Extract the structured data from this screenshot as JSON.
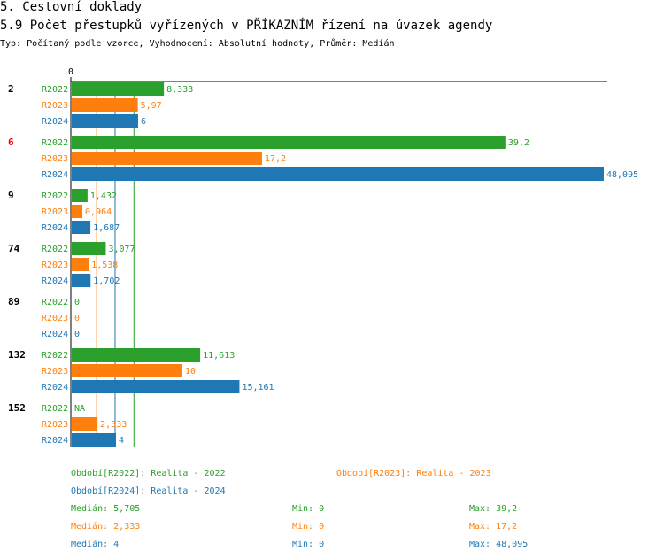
{
  "header": {
    "section": "5. Cestovní doklady",
    "title": "5.9 Počet přestupků vyřízených v PŘÍKAZNÍM řízení na úvazek agendy",
    "subtitle": "Typ: Počítaný podle vzorce, Vyhodnocení: Absolutní hodnoty, Průměr: Medián"
  },
  "chart_data": {
    "type": "bar",
    "orientation": "horizontal",
    "axis_zero_label": "0",
    "xlim": [
      0,
      48.095
    ],
    "groups": [
      {
        "label": "2",
        "highlight": false,
        "values": [
          8.333,
          5.97,
          6
        ],
        "labels": [
          "8,333",
          "5,97",
          "6"
        ]
      },
      {
        "label": "6",
        "highlight": true,
        "values": [
          39.2,
          17.2,
          48.095
        ],
        "labels": [
          "39,2",
          "17,2",
          "48,095"
        ]
      },
      {
        "label": "9",
        "highlight": false,
        "values": [
          1.432,
          0.964,
          1.687
        ],
        "labels": [
          "1,432",
          "0,964",
          "1,687"
        ]
      },
      {
        "label": "74",
        "highlight": false,
        "values": [
          3.077,
          1.538,
          1.702
        ],
        "labels": [
          "3,077",
          "1,538",
          "1,702"
        ]
      },
      {
        "label": "89",
        "highlight": false,
        "values": [
          0,
          0,
          0
        ],
        "labels": [
          "0",
          "0",
          "0"
        ]
      },
      {
        "label": "132",
        "highlight": false,
        "values": [
          11.613,
          10,
          15.161
        ],
        "labels": [
          "11,613",
          "10",
          "15,161"
        ]
      },
      {
        "label": "152",
        "highlight": false,
        "values": [
          null,
          2.333,
          4
        ],
        "labels": [
          "NA",
          "2,333",
          "4"
        ]
      }
    ],
    "series": [
      {
        "name": "R2022",
        "color": "#2ca02c",
        "median": 5.705
      },
      {
        "name": "R2023",
        "color": "#ff7f0e",
        "median": 2.333
      },
      {
        "name": "R2024",
        "color": "#1f77b4",
        "median": 4
      }
    ]
  },
  "legend": {
    "periods": [
      {
        "text": "Období[R2022]: Realita - 2022",
        "color": "#2ca02c"
      },
      {
        "text": "Období[R2023]: Realita - 2023",
        "color": "#ff7f0e"
      },
      {
        "text": "Období[R2024]: Realita - 2024",
        "color": "#1f77b4"
      }
    ],
    "stats": [
      {
        "median": "Medián: 5,705",
        "min": "Min: 0",
        "max": "Max: 39,2",
        "color": "#2ca02c"
      },
      {
        "median": "Medián: 2,333",
        "min": "Min: 0",
        "max": "Max: 17,2",
        "color": "#ff7f0e"
      },
      {
        "median": "Medián: 4",
        "min": "Min: 0",
        "max": "Max: 48,095",
        "color": "#1f77b4"
      }
    ]
  },
  "colors": {
    "highlight": "#ff0000",
    "axis": "#000000"
  }
}
